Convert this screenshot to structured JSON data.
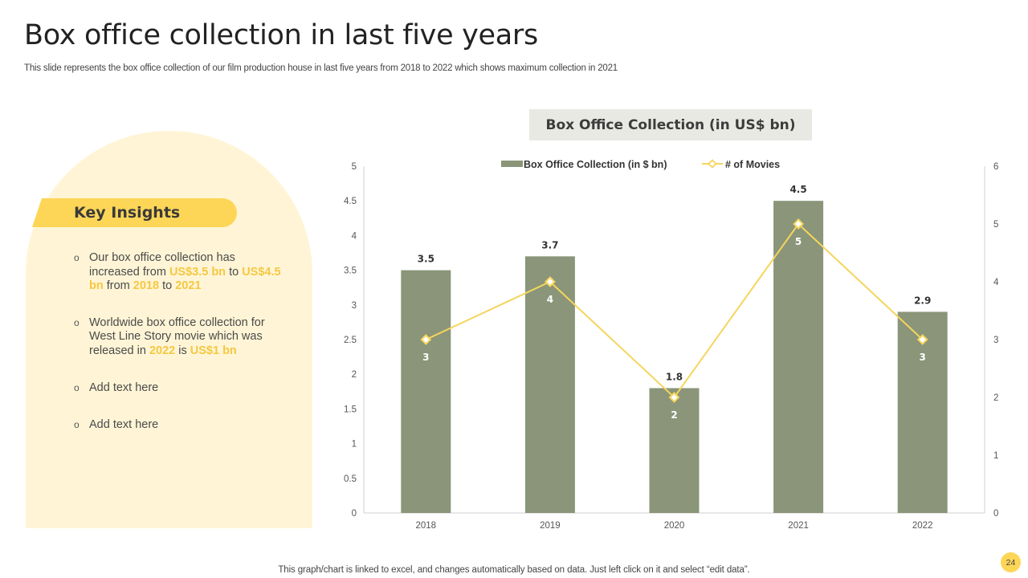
{
  "slide": {
    "title": "Box office collection in last five years",
    "subtitle": "This slide represents the box office collection of our film production house in last five years from 2018 to 2022 which shows maximum collection in 2021",
    "footer": "This graph/chart is linked to excel, and changes automatically based on data. Just left click on it and select “edit data”.",
    "page_number": "24"
  },
  "insights": {
    "heading": "Key Insights",
    "bullet_symbol": "o",
    "bullet1": {
      "p1": "Our box office collection has increased from ",
      "h1": "US$3.5 bn",
      "p2": " to ",
      "h2": "US$4.5 bn",
      "p3": " from ",
      "h3": "2018",
      "p4": " to ",
      "h4": "2021"
    },
    "bullet2": {
      "p1": "Worldwide box office collection for West Line Story movie which was released in ",
      "h1": "2022",
      "p2": " is ",
      "h2": "US$1 bn"
    },
    "bullet3": "Add text here",
    "bullet4": "Add text here"
  },
  "colors": {
    "bar": "#8a9579",
    "line": "#f5d55c",
    "highlight": "#f5c842",
    "panel": "#fff5d6"
  },
  "chart_data": {
    "type": "bar",
    "title": "Box Office Collection (in US$ bn)",
    "categories": [
      "2018",
      "2019",
      "2020",
      "2021",
      "2022"
    ],
    "series": [
      {
        "name": "Box Office Collection (in $ bn)",
        "type": "bar",
        "axis": "left",
        "values": [
          3.5,
          3.7,
          1.8,
          4.5,
          2.9
        ]
      },
      {
        "name": "# of Movies",
        "type": "line",
        "axis": "right",
        "values": [
          3,
          4,
          2,
          5,
          3
        ]
      }
    ],
    "ylim": [
      0,
      5
    ],
    "y_ticks": [
      "0",
      "0.5",
      "1",
      "1.5",
      "2",
      "2.5",
      "3",
      "3.5",
      "4",
      "4.5",
      "5"
    ],
    "y2lim": [
      0,
      6
    ],
    "y2_ticks": [
      "0",
      "1",
      "2",
      "3",
      "4",
      "5",
      "6"
    ],
    "legend_position": "top",
    "grid": false
  }
}
